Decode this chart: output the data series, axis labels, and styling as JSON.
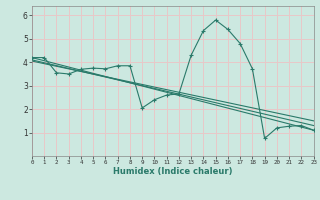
{
  "bg_color": "#cce8e0",
  "grid_color": "#e8c8c8",
  "line_color": "#2a7a6a",
  "xlabel": "Humidex (Indice chaleur)",
  "xmin": 0,
  "xmax": 23,
  "ymin": 0,
  "ymax": 6.4,
  "yticks": [
    1,
    2,
    3,
    4,
    5,
    6
  ],
  "xticks": [
    0,
    1,
    2,
    3,
    4,
    5,
    6,
    7,
    8,
    9,
    10,
    11,
    12,
    13,
    14,
    15,
    16,
    17,
    18,
    19,
    20,
    21,
    22,
    23
  ],
  "series": [
    {
      "x": [
        0,
        1,
        2,
        3,
        4,
        5,
        6,
        7,
        8,
        9,
        10,
        11,
        12,
        13,
        14,
        15,
        16,
        17,
        18,
        19,
        20,
        21,
        22,
        23
      ],
      "y": [
        4.2,
        4.2,
        3.55,
        3.5,
        3.7,
        3.75,
        3.72,
        3.85,
        3.85,
        2.05,
        2.4,
        2.6,
        2.65,
        4.3,
        5.35,
        5.8,
        5.4,
        4.8,
        3.72,
        0.75,
        1.2,
        1.27,
        1.3,
        1.1
      ],
      "has_markers": true
    },
    {
      "x": [
        0,
        23
      ],
      "y": [
        4.2,
        1.1
      ],
      "has_markers": false
    },
    {
      "x": [
        0,
        23
      ],
      "y": [
        4.1,
        1.3
      ],
      "has_markers": false
    },
    {
      "x": [
        0,
        23
      ],
      "y": [
        4.05,
        1.5
      ],
      "has_markers": false
    }
  ]
}
